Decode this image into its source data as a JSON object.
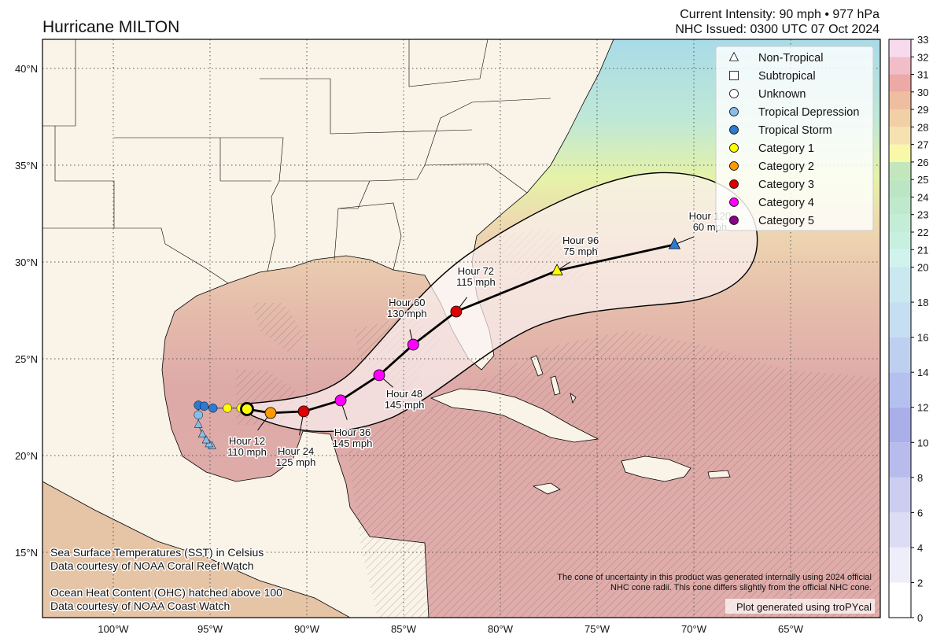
{
  "header": {
    "title": "Hurricane MILTON",
    "intensity": "Current Intensity: 90 mph • 977 hPa",
    "issued": "NHC Issued: 0300 UTC 07 Oct 2024"
  },
  "axes": {
    "lon_ticks": [
      {
        "value": -100,
        "label": "100°W"
      },
      {
        "value": -95,
        "label": "95°W"
      },
      {
        "value": -90,
        "label": "90°W"
      },
      {
        "value": -85,
        "label": "85°W"
      },
      {
        "value": -80,
        "label": "80°W"
      },
      {
        "value": -75,
        "label": "75°W"
      },
      {
        "value": -70,
        "label": "70°W"
      },
      {
        "value": -65,
        "label": "65°W"
      }
    ],
    "lat_ticks": [
      {
        "value": 40,
        "label": "40°N"
      },
      {
        "value": 35,
        "label": "35°N"
      },
      {
        "value": 30,
        "label": "30°N"
      },
      {
        "value": 25,
        "label": "25°N"
      },
      {
        "value": 20,
        "label": "20°N"
      },
      {
        "value": 15,
        "label": "15°N"
      }
    ],
    "lon_range": [
      -103.66,
      -60.4
    ],
    "lat_range": [
      11.6,
      41.5
    ]
  },
  "legend": [
    {
      "label": "Non-Tropical",
      "shape": "triangle",
      "color": "none"
    },
    {
      "label": "Subtropical",
      "shape": "square",
      "color": "none"
    },
    {
      "label": "Unknown",
      "shape": "circle",
      "color": "none"
    },
    {
      "label": "Tropical Depression",
      "shape": "circle",
      "color": "#88bdea"
    },
    {
      "label": "Tropical Storm",
      "shape": "circle",
      "color": "#2b7bd0"
    },
    {
      "label": "Category 1",
      "shape": "circle",
      "color": "#ffff00"
    },
    {
      "label": "Category 2",
      "shape": "circle",
      "color": "#ff9a00"
    },
    {
      "label": "Category 3",
      "shape": "circle",
      "color": "#dd0000"
    },
    {
      "label": "Category 4",
      "shape": "circle",
      "color": "#ff00ff"
    },
    {
      "label": "Category 5",
      "shape": "circle",
      "color": "#8b008b"
    }
  ],
  "past_track": [
    {
      "lon": -94.9,
      "lat": 20.5,
      "shape": "triangle",
      "color": "#88bdea"
    },
    {
      "lon": -95.05,
      "lat": 20.6,
      "shape": "triangle",
      "color": "#88bdea"
    },
    {
      "lon": -95.2,
      "lat": 20.8,
      "shape": "triangle",
      "color": "#88bdea"
    },
    {
      "lon": -95.4,
      "lat": 21.1,
      "shape": "triangle",
      "color": "#88bdea"
    },
    {
      "lon": -95.6,
      "lat": 21.6,
      "shape": "triangle",
      "color": "#88bdea"
    },
    {
      "lon": -95.6,
      "lat": 22.1,
      "shape": "circle",
      "color": "#88bdea"
    },
    {
      "lon": -95.6,
      "lat": 22.6,
      "shape": "circle",
      "color": "#2b7bd0"
    },
    {
      "lon": -95.3,
      "lat": 22.55,
      "shape": "circle",
      "color": "#2b7bd0"
    },
    {
      "lon": -94.85,
      "lat": 22.45,
      "shape": "circle",
      "color": "#2b7bd0"
    },
    {
      "lon": -94.1,
      "lat": 22.45,
      "shape": "circle",
      "color": "#ffff00"
    },
    {
      "lon": -93.4,
      "lat": 22.45,
      "shape": "circle",
      "color": "#ffff00"
    }
  ],
  "forecast_track": [
    {
      "hour": 0,
      "label": "",
      "wind": "",
      "lon": -93.09,
      "lat": 22.4,
      "shape": "circle",
      "color": "#ffff00",
      "current": true
    },
    {
      "hour": 12,
      "label": "Hour 12",
      "wind": "110 mph",
      "lon": -91.87,
      "lat": 22.2,
      "shape": "circle",
      "color": "#ff9a00"
    },
    {
      "hour": 24,
      "label": "Hour 24",
      "wind": "125 mph",
      "lon": -90.16,
      "lat": 22.28,
      "shape": "circle",
      "color": "#dd0000"
    },
    {
      "hour": 36,
      "label": "Hour 36",
      "wind": "145 mph",
      "lon": -88.25,
      "lat": 22.85,
      "shape": "circle",
      "color": "#ff00ff"
    },
    {
      "hour": 48,
      "label": "Hour 48",
      "wind": "145 mph",
      "lon": -86.26,
      "lat": 24.15,
      "shape": "circle",
      "color": "#ff00ff"
    },
    {
      "hour": 60,
      "label": "Hour 60",
      "wind": "130 mph",
      "lon": -84.5,
      "lat": 25.73,
      "shape": "circle",
      "color": "#ff00ff"
    },
    {
      "hour": 72,
      "label": "Hour 72",
      "wind": "115 mph",
      "lon": -82.28,
      "lat": 27.44,
      "shape": "circle",
      "color": "#dd0000"
    },
    {
      "hour": 96,
      "label": "Hour 96",
      "wind": "75 mph",
      "lon": -77.07,
      "lat": 29.55,
      "shape": "triangle",
      "color": "#ffff00"
    },
    {
      "hour": 120,
      "label": "Hour 120",
      "wind": "60 mph",
      "lon": -71.0,
      "lat": 30.9,
      "shape": "triangle",
      "color": "#2b7bd0"
    }
  ],
  "colorbar": {
    "range": [
      0,
      33
    ],
    "tick_labels": [
      "0",
      "2",
      "4",
      "6",
      "8",
      "10",
      "12",
      "14",
      "16",
      "18",
      "20",
      "21",
      "22",
      "23",
      "24",
      "25",
      "26",
      "27",
      "28",
      "29",
      "30",
      "31",
      "32",
      "33"
    ],
    "tick_values": [
      0,
      2,
      4,
      6,
      8,
      10,
      12,
      14,
      16,
      18,
      20,
      21,
      22,
      23,
      24,
      25,
      26,
      27,
      28,
      29,
      30,
      31,
      32,
      33
    ],
    "bin_colors": [
      "#ffffff",
      "#eeeefa",
      "#dcdcf5",
      "#cbcdf1",
      "#b8bcec",
      "#aaaee9",
      "#b4c0ee",
      "#bdd0f0",
      "#c5def1",
      "#c9e8ef",
      "#d0f3ee",
      "#c8f0e0",
      "#c3edd6",
      "#bfe9cc",
      "#bce6c3",
      "#c2e7bc",
      "#f8f8a8",
      "#f6e2b0",
      "#f2d0a6",
      "#efbda0",
      "#eca9a5",
      "#f0bdc9",
      "#f8daee"
    ]
  },
  "notes": {
    "sst_line1": "Sea Surface Temperatures (SST) in Celsius",
    "sst_line2": "Data courtesy of NOAA Coral Reef Watch",
    "ohc_line1": "Ocean Heat Content (OHC) hatched above 100",
    "ohc_line2": "Data courtesy of NOAA Coast Watch",
    "cone_line1": "The cone of uncertainty in this product was generated internally using 2024 official",
    "cone_line2": "NHC cone radii. This cone differs slightly from the official NHC cone.",
    "credit": "Plot generated using troPYcal"
  },
  "colors": {
    "land": "#faf3e8",
    "coastline": "#000000",
    "cone_fill": "#fbeeee"
  }
}
